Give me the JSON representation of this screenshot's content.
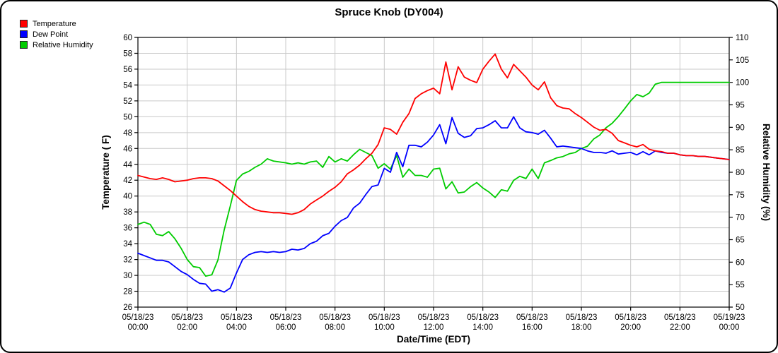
{
  "title": "Spruce Knob (DY004)",
  "legend": [
    {
      "label": "Temperature",
      "color": "#ff0000"
    },
    {
      "label": "Dew Point",
      "color": "#0000ff"
    },
    {
      "label": "Relative Humidity",
      "color": "#00cc00"
    }
  ],
  "chart_data": {
    "type": "line",
    "title": "Spruce Knob (DY004)",
    "grid": true,
    "gridline_color": "#c9c9c9",
    "legend_position": "top-left",
    "x_axis": {
      "label": "Date/Time (EDT)",
      "start_hour": 0,
      "end_hour": 24,
      "interval_hours": 0.25,
      "tick_every_hours": 2,
      "ticks": [
        {
          "date": "05/18/23",
          "time": "00:00"
        },
        {
          "date": "05/18/23",
          "time": "02:00"
        },
        {
          "date": "05/18/23",
          "time": "04:00"
        },
        {
          "date": "05/18/23",
          "time": "06:00"
        },
        {
          "date": "05/18/23",
          "time": "08:00"
        },
        {
          "date": "05/18/23",
          "time": "10:00"
        },
        {
          "date": "05/18/23",
          "time": "12:00"
        },
        {
          "date": "05/18/23",
          "time": "14:00"
        },
        {
          "date": "05/18/23",
          "time": "16:00"
        },
        {
          "date": "05/18/23",
          "time": "18:00"
        },
        {
          "date": "05/18/23",
          "time": "20:00"
        },
        {
          "date": "05/18/23",
          "time": "22:00"
        },
        {
          "date": "05/19/23",
          "time": "00:00"
        }
      ]
    },
    "y_left": {
      "label": "Temperature ( F)",
      "min": 26,
      "max": 60,
      "tick_step": 2,
      "tick_labels": [
        26,
        28,
        30,
        32,
        34,
        36,
        38,
        40,
        42,
        44,
        46,
        48,
        50,
        52,
        54,
        56,
        58,
        60
      ]
    },
    "y_right": {
      "label": "Relative Humidity (%)",
      "min": 50,
      "max": 110,
      "tick_step": 5,
      "tick_labels": [
        50,
        55,
        60,
        65,
        70,
        75,
        80,
        85,
        90,
        95,
        100,
        105,
        110
      ]
    },
    "series": [
      {
        "name": "Temperature",
        "color": "#ff0000",
        "axis": "left",
        "units": "F",
        "values": [
          42.6,
          42.4,
          42.2,
          42.1,
          42.3,
          42.1,
          41.8,
          41.9,
          42.0,
          42.2,
          42.3,
          42.3,
          42.2,
          41.9,
          41.3,
          40.7,
          40.0,
          39.3,
          38.7,
          38.3,
          38.1,
          38.0,
          37.9,
          37.9,
          37.8,
          37.7,
          37.9,
          38.3,
          39.0,
          39.5,
          40.0,
          40.6,
          41.1,
          41.8,
          42.8,
          43.3,
          43.9,
          44.7,
          45.4,
          46.5,
          48.6,
          48.4,
          47.8,
          49.3,
          50.4,
          52.3,
          52.9,
          53.3,
          53.6,
          52.9,
          56.9,
          53.4,
          56.3,
          55.0,
          54.6,
          54.3,
          56.0,
          57.0,
          57.9,
          56.0,
          54.9,
          56.6,
          55.8,
          55.0,
          54.0,
          53.4,
          54.4,
          52.4,
          51.4,
          51.1,
          51.0,
          50.4,
          49.9,
          49.3,
          48.7,
          48.3,
          48.4,
          47.9,
          47.0,
          46.7,
          46.4,
          46.2,
          46.5,
          45.9,
          45.7,
          45.6,
          45.4,
          45.4,
          45.2,
          45.1,
          45.1,
          45.0,
          45.0,
          44.9,
          44.8,
          44.7,
          44.6
        ]
      },
      {
        "name": "Dew Point",
        "color": "#0000ff",
        "axis": "left",
        "units": "F",
        "values": [
          32.8,
          32.5,
          32.2,
          31.9,
          31.9,
          31.7,
          31.1,
          30.5,
          30.1,
          29.5,
          29.0,
          28.9,
          28.0,
          28.2,
          27.9,
          28.4,
          30.3,
          32.0,
          32.6,
          32.9,
          33.0,
          32.9,
          33.0,
          32.9,
          33.0,
          33.3,
          33.2,
          33.4,
          34.0,
          34.3,
          35.0,
          35.3,
          36.2,
          36.9,
          37.3,
          38.5,
          39.1,
          40.2,
          41.2,
          41.4,
          43.5,
          43.0,
          45.5,
          43.7,
          46.4,
          46.4,
          46.2,
          46.8,
          47.7,
          49.0,
          46.6,
          49.9,
          47.9,
          47.4,
          47.6,
          48.5,
          48.6,
          49.0,
          49.5,
          48.6,
          48.6,
          50.0,
          48.6,
          48.1,
          48.0,
          47.8,
          48.3,
          47.3,
          46.2,
          46.3,
          46.2,
          46.1,
          46.0,
          45.7,
          45.5,
          45.5,
          45.4,
          45.7,
          45.3,
          45.4,
          45.5,
          45.2,
          45.6,
          45.2,
          45.7,
          45.5,
          45.4,
          45.4,
          45.2,
          45.1,
          45.1,
          45.0,
          45.0,
          44.9,
          44.8,
          44.7,
          44.6
        ]
      },
      {
        "name": "Relative Humidity",
        "color": "#00cc00",
        "axis": "right",
        "units": "%",
        "values": [
          68.4,
          68.9,
          68.4,
          66.2,
          65.9,
          66.8,
          65.2,
          63.1,
          60.6,
          59.0,
          58.8,
          56.9,
          57.2,
          60.5,
          67.1,
          72.5,
          78.2,
          79.6,
          80.2,
          81.1,
          81.8,
          83.0,
          82.5,
          82.3,
          82.1,
          81.8,
          82.1,
          81.8,
          82.3,
          82.5,
          81.1,
          83.5,
          82.3,
          83.0,
          82.5,
          83.9,
          85.1,
          84.4,
          83.7,
          80.9,
          81.9,
          80.7,
          83.7,
          78.9,
          80.7,
          79.3,
          79.3,
          78.9,
          80.7,
          80.9,
          76.3,
          77.9,
          75.4,
          75.6,
          76.8,
          77.7,
          76.5,
          75.6,
          74.4,
          76.1,
          75.8,
          78.2,
          79.1,
          78.6,
          80.7,
          78.6,
          82.1,
          82.6,
          83.2,
          83.5,
          84.1,
          84.4,
          85.3,
          85.8,
          87.4,
          88.3,
          89.9,
          90.9,
          92.4,
          94.1,
          95.9,
          97.3,
          96.8,
          97.6,
          99.6,
          100.0,
          100.0,
          100.0,
          100.0,
          100.0,
          100.0,
          100.0,
          100.0,
          100.0,
          100.0,
          100.0,
          100.0
        ]
      }
    ]
  }
}
